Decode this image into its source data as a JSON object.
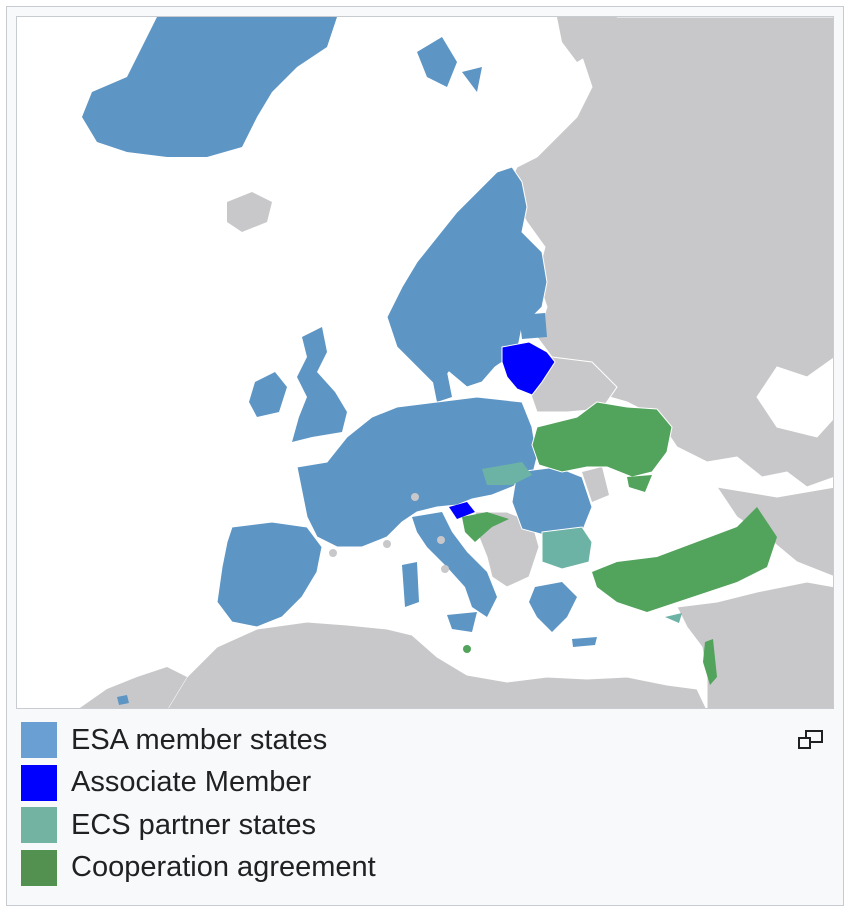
{
  "legend": {
    "items": [
      {
        "label": "ESA member states",
        "color": "#6a9fd4"
      },
      {
        "label": "Associate Member",
        "color": "#0000ff"
      },
      {
        "label": "ECS partner states",
        "color": "#72b3a2"
      },
      {
        "label": "Cooperation agreement",
        "color": "#529150"
      }
    ]
  },
  "map_colors": {
    "sea": "#ffffff",
    "other_land": "#c8c8ca",
    "esa_member": "#5d95c4",
    "associate": "#0000ff",
    "ecs_partner": "#6db3a5",
    "cooperation": "#52a35c",
    "borders": "#ffffff"
  },
  "icons": {
    "enlarge": "enlarge-icon"
  }
}
